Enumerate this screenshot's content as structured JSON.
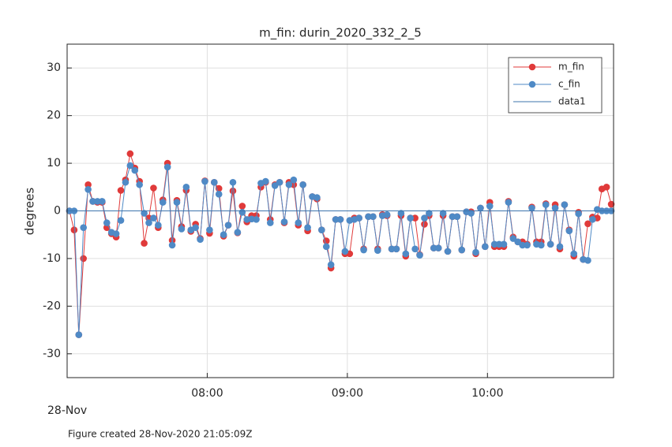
{
  "chart_data": {
    "type": "line",
    "title": "m_fin: durin_2020_332_2_5",
    "ylabel": "degrees",
    "date_label": "28-Nov",
    "footnote": "Figure created 28-Nov-2020 21:05:09Z",
    "x": [
      "07:01",
      "07:03",
      "07:05",
      "07:07",
      "07:09",
      "07:11",
      "07:13",
      "07:15",
      "07:17",
      "07:19",
      "07:21",
      "07:23",
      "07:25",
      "07:27",
      "07:29",
      "07:31",
      "07:33",
      "07:35",
      "07:37",
      "07:39",
      "07:41",
      "07:43",
      "07:45",
      "07:47",
      "07:49",
      "07:51",
      "07:53",
      "07:55",
      "07:57",
      "07:59",
      "08:01",
      "08:03",
      "08:05",
      "08:07",
      "08:09",
      "08:11",
      "08:13",
      "08:15",
      "08:17",
      "08:19",
      "08:21",
      "08:23",
      "08:25",
      "08:27",
      "08:29",
      "08:31",
      "08:33",
      "08:35",
      "08:37",
      "08:39",
      "08:41",
      "08:43",
      "08:45",
      "08:47",
      "08:49",
      "08:51",
      "08:53",
      "08:55",
      "08:57",
      "08:59",
      "09:01",
      "09:03",
      "09:05",
      "09:07",
      "09:09",
      "09:11",
      "09:13",
      "09:15",
      "09:17",
      "09:19",
      "09:21",
      "09:23",
      "09:25",
      "09:27",
      "09:29",
      "09:31",
      "09:33",
      "09:35",
      "09:37",
      "09:39",
      "09:41",
      "09:43",
      "09:45",
      "09:47",
      "09:49",
      "09:51",
      "09:53",
      "09:55",
      "09:57",
      "09:59",
      "10:01",
      "10:03",
      "10:05",
      "10:07",
      "10:09",
      "10:11",
      "10:13",
      "10:15",
      "10:17",
      "10:19",
      "10:21",
      "10:23",
      "10:25",
      "10:27",
      "10:29",
      "10:31",
      "10:33",
      "10:35",
      "10:37",
      "10:39",
      "10:41",
      "10:43",
      "10:45",
      "10:47",
      "10:49",
      "10:51",
      "10:53"
    ],
    "series": [
      {
        "name": "m_fin",
        "color": "#e03a3a",
        "marker": true,
        "values": [
          0,
          -4,
          -26,
          -10,
          5.5,
          2,
          1.8,
          1.8,
          -3.5,
          -4.8,
          -5.5,
          4.3,
          6.5,
          12,
          9,
          6.2,
          -6.8,
          -1.5,
          4.8,
          -3.5,
          2.3,
          10,
          -6.2,
          2.2,
          -3.3,
          4.3,
          -4.3,
          -2.8,
          -5.8,
          6.3,
          -4.7,
          6,
          4.7,
          -5.3,
          -3,
          4.2,
          -4.6,
          1,
          -2.3,
          -1,
          -1,
          5,
          6,
          -1.8,
          5.5,
          6,
          -2.5,
          6,
          5.5,
          -3,
          5.5,
          -4.2,
          3,
          2.5,
          -4,
          -6.3,
          -12,
          -1.8,
          -1.8,
          -9,
          -9,
          -1.5,
          -1.5,
          -8,
          -1.2,
          -1.2,
          -8,
          -0.8,
          -1,
          -8,
          -8,
          -1,
          -9.5,
          -1.5,
          -1.5,
          -9.2,
          -2.8,
          -1,
          -7.8,
          -7.8,
          -1,
          -8.5,
          -1.2,
          -1.2,
          -8.2,
          -0.2,
          -0.2,
          -9,
          0.6,
          -7.5,
          1.8,
          -7.5,
          -7.5,
          -7.5,
          2,
          -5.5,
          -6.5,
          -6.5,
          -7,
          0.8,
          -6.5,
          -6.5,
          1.5,
          -7,
          1.3,
          -8,
          1.3,
          -4,
          -9.5,
          -0.3,
          -10.2,
          -2.7,
          -1.3,
          -1.5,
          4.6,
          5,
          1.4
        ]
      },
      {
        "name": "c_fin",
        "color": "#4f8ac6",
        "marker": true,
        "values": [
          0,
          0,
          -26,
          -3.5,
          4.5,
          2,
          2,
          2,
          -2.5,
          -4.5,
          -4.8,
          -2,
          6,
          9.5,
          8.5,
          5.5,
          -0.5,
          -2.5,
          -1.5,
          -3,
          1.8,
          9.2,
          -7.2,
          1.8,
          -3.8,
          5,
          -4,
          -3.5,
          -6,
          6.2,
          -4,
          6,
          3.5,
          -5,
          -3,
          6,
          -4.5,
          -0.3,
          -1.8,
          -1.7,
          -1.8,
          5.8,
          6.2,
          -2.5,
          5.3,
          6,
          -2.3,
          5.5,
          6.5,
          -2.5,
          5.5,
          -3.5,
          3,
          2.8,
          -4,
          -7.5,
          -11.3,
          -1.8,
          -1.8,
          -8.5,
          -2,
          -1.8,
          -1.5,
          -8.2,
          -1.2,
          -1.2,
          -8.3,
          -1,
          -0.8,
          -8,
          -8,
          -0.5,
          -9,
          -1.5,
          -8,
          -9.3,
          -1.5,
          -0.5,
          -7.8,
          -7.8,
          -0.5,
          -8.5,
          -1.2,
          -1.2,
          -8.2,
          -0.2,
          -0.5,
          -8.7,
          0.6,
          -7.5,
          1,
          -7,
          -7,
          -7,
          1.8,
          -5.8,
          -6.5,
          -7.2,
          -7.2,
          0.6,
          -7,
          -7.2,
          1.3,
          -7,
          0.6,
          -7.5,
          1.3,
          -4.2,
          -9,
          -0.6,
          -10.2,
          -10.4,
          -1.8,
          0.3,
          0,
          0,
          0
        ]
      },
      {
        "name": "data1",
        "color": "#3d74ad",
        "marker": false,
        "x": [
          "07:00",
          "10:54"
        ],
        "values": [
          0,
          0
        ]
      }
    ],
    "xlim": [
      "07:00",
      "10:54"
    ],
    "xticks": [
      "08:00",
      "09:00",
      "10:00"
    ],
    "ylim": [
      -35,
      35
    ],
    "yticks": [
      -30,
      -20,
      -10,
      0,
      10,
      20,
      30
    ],
    "grid": true,
    "legend": "northeast"
  }
}
